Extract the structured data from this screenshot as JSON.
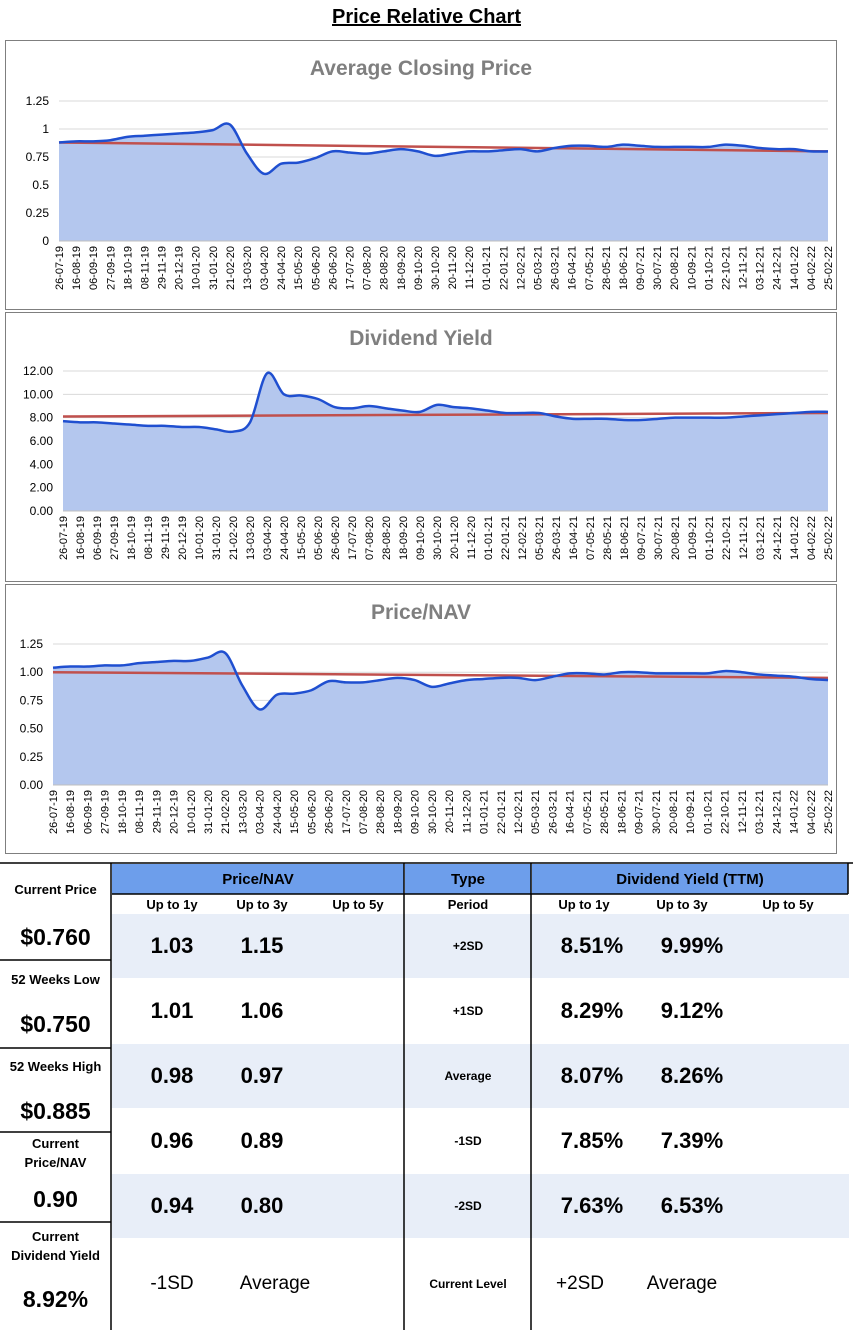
{
  "page_title": "Price Relative Chart",
  "chart_data": [
    {
      "type": "area",
      "title": "Average Closing Price",
      "ylim": [
        0,
        1.25
      ],
      "y_ticks": [
        0,
        0.25,
        0.5,
        0.75,
        1,
        1.25
      ],
      "y_tick_labels": [
        "0",
        "0.25",
        "0.5",
        "0.75",
        "1",
        "1.25"
      ],
      "x_tick_labels": [
        "26-07-19",
        "16-08-19",
        "06-09-19",
        "27-09-19",
        "18-10-19",
        "08-11-19",
        "29-11-19",
        "20-12-19",
        "10-01-20",
        "31-01-20",
        "21-02-20",
        "13-03-20",
        "03-04-20",
        "24-04-20",
        "15-05-20",
        "05-06-20",
        "26-06-20",
        "17-07-20",
        "07-08-20",
        "28-08-20",
        "18-09-20",
        "09-10-20",
        "30-10-20",
        "20-11-20",
        "11-12-20",
        "01-01-21",
        "22-01-21",
        "12-02-21",
        "05-03-21",
        "26-03-21",
        "16-04-21",
        "07-05-21",
        "28-05-21",
        "18-06-21",
        "09-07-21",
        "30-07-21",
        "20-08-21",
        "10-09-21",
        "01-10-21",
        "22-10-21",
        "12-11-21",
        "03-12-21",
        "24-12-21",
        "14-01-22",
        "04-02-22",
        "25-02-22"
      ],
      "values": [
        0.88,
        0.89,
        0.89,
        0.9,
        0.93,
        0.94,
        0.95,
        0.96,
        0.97,
        0.99,
        1.04,
        0.78,
        0.6,
        0.69,
        0.7,
        0.74,
        0.8,
        0.79,
        0.78,
        0.8,
        0.82,
        0.8,
        0.76,
        0.78,
        0.8,
        0.8,
        0.81,
        0.82,
        0.8,
        0.83,
        0.85,
        0.85,
        0.84,
        0.86,
        0.85,
        0.84,
        0.84,
        0.84,
        0.84,
        0.86,
        0.85,
        0.83,
        0.82,
        0.82,
        0.8,
        0.8
      ],
      "trend": [
        0.88,
        0.8
      ],
      "series_color": "#1f4fd0",
      "fill_color": "#b4c7ee",
      "trend_color": "#c0504d"
    },
    {
      "type": "area",
      "title": "Dividend Yield",
      "ylim": [
        0,
        12
      ],
      "y_ticks": [
        0,
        2,
        4,
        6,
        8,
        10,
        12
      ],
      "y_tick_labels": [
        "0.00",
        "2.00",
        "4.00",
        "6.00",
        "8.00",
        "10.00",
        "12.00"
      ],
      "x_tick_labels": [
        "26-07-19",
        "16-08-19",
        "06-09-19",
        "27-09-19",
        "18-10-19",
        "08-11-19",
        "29-11-19",
        "20-12-19",
        "10-01-20",
        "31-01-20",
        "21-02-20",
        "13-03-20",
        "03-04-20",
        "24-04-20",
        "15-05-20",
        "05-06-20",
        "26-06-20",
        "17-07-20",
        "07-08-20",
        "28-08-20",
        "18-09-20",
        "09-10-20",
        "30-10-20",
        "20-11-20",
        "11-12-20",
        "01-01-21",
        "22-01-21",
        "12-02-21",
        "05-03-21",
        "26-03-21",
        "16-04-21",
        "07-05-21",
        "28-05-21",
        "18-06-21",
        "09-07-21",
        "30-07-21",
        "20-08-21",
        "10-09-21",
        "01-10-21",
        "22-10-21",
        "12-11-21",
        "03-12-21",
        "24-12-21",
        "14-01-22",
        "04-02-22",
        "25-02-22"
      ],
      "values": [
        7.7,
        7.6,
        7.6,
        7.5,
        7.4,
        7.3,
        7.3,
        7.2,
        7.2,
        7.0,
        6.8,
        7.6,
        11.8,
        10.0,
        9.9,
        9.6,
        8.9,
        8.8,
        9.0,
        8.8,
        8.6,
        8.5,
        9.1,
        8.9,
        8.8,
        8.6,
        8.4,
        8.4,
        8.4,
        8.1,
        7.9,
        7.9,
        7.9,
        7.8,
        7.8,
        7.9,
        8.0,
        8.0,
        8.0,
        8.0,
        8.1,
        8.2,
        8.3,
        8.4,
        8.5,
        8.5
      ],
      "trend": [
        8.1,
        8.4
      ],
      "series_color": "#1f4fd0",
      "fill_color": "#b4c7ee",
      "trend_color": "#c0504d"
    },
    {
      "type": "area",
      "title": "Price/NAV",
      "ylim": [
        0,
        1.25
      ],
      "y_ticks": [
        0,
        0.25,
        0.5,
        0.75,
        1,
        1.25
      ],
      "y_tick_labels": [
        "0.00",
        "0.25",
        "0.50",
        "0.75",
        "1.00",
        "1.25"
      ],
      "x_tick_labels": [
        "26-07-19",
        "16-08-19",
        "06-09-19",
        "27-09-19",
        "18-10-19",
        "08-11-19",
        "29-11-19",
        "20-12-19",
        "10-01-20",
        "31-01-20",
        "21-02-20",
        "13-03-20",
        "03-04-20",
        "24-04-20",
        "15-05-20",
        "05-06-20",
        "26-06-20",
        "17-07-20",
        "07-08-20",
        "28-08-20",
        "18-09-20",
        "09-10-20",
        "30-10-20",
        "20-11-20",
        "11-12-20",
        "01-01-21",
        "22-01-21",
        "12-02-21",
        "05-03-21",
        "26-03-21",
        "16-04-21",
        "07-05-21",
        "28-05-21",
        "18-06-21",
        "09-07-21",
        "30-07-21",
        "20-08-21",
        "10-09-21",
        "01-10-21",
        "22-10-21",
        "12-11-21",
        "03-12-21",
        "24-12-21",
        "14-01-22",
        "04-02-22",
        "25-02-22"
      ],
      "values": [
        1.04,
        1.05,
        1.05,
        1.06,
        1.06,
        1.08,
        1.09,
        1.1,
        1.1,
        1.13,
        1.17,
        0.88,
        0.67,
        0.8,
        0.81,
        0.84,
        0.92,
        0.91,
        0.91,
        0.93,
        0.95,
        0.93,
        0.87,
        0.9,
        0.93,
        0.94,
        0.95,
        0.95,
        0.93,
        0.96,
        0.99,
        0.99,
        0.98,
        1.0,
        1.0,
        0.99,
        0.99,
        0.99,
        0.99,
        1.01,
        1.0,
        0.98,
        0.97,
        0.96,
        0.94,
        0.93
      ],
      "trend": [
        1.0,
        0.95
      ],
      "series_color": "#1f4fd0",
      "fill_color": "#b4c7ee",
      "trend_color": "#c0504d"
    }
  ],
  "left_panel": {
    "current_price_label": "Current Price",
    "current_price": "$0.760",
    "low_label": "52 Weeks Low",
    "low": "$0.750",
    "high_label": "52 Weeks High",
    "high": "$0.885",
    "pnav_label_1": "Current",
    "pnav_label_2": "Price/NAV",
    "pnav": "0.90",
    "dy_label_1": "Current",
    "dy_label_2": "Dividend Yield",
    "dy": "8.92%"
  },
  "table": {
    "pnav_header": "Price/NAV",
    "type_header": "Type",
    "dy_header": "Dividend Yield (TTM)",
    "sub_1y": "Up to 1y",
    "sub_3y": "Up to 3y",
    "sub_5y": "Up to 5y",
    "period": "Period",
    "rows": [
      {
        "type": "+2SD",
        "pnav_1y": "1.03",
        "pnav_3y": "1.15",
        "dy_1y": "8.51%",
        "dy_3y": "9.99%"
      },
      {
        "type": "+1SD",
        "pnav_1y": "1.01",
        "pnav_3y": "1.06",
        "dy_1y": "8.29%",
        "dy_3y": "9.12%"
      },
      {
        "type": "Average",
        "pnav_1y": "0.98",
        "pnav_3y": "0.97",
        "dy_1y": "8.07%",
        "dy_3y": "8.26%"
      },
      {
        "type": "-1SD",
        "pnav_1y": "0.96",
        "pnav_3y": "0.89",
        "dy_1y": "7.85%",
        "dy_3y": "7.39%"
      },
      {
        "type": "-2SD",
        "pnav_1y": "0.94",
        "pnav_3y": "0.80",
        "dy_1y": "7.63%",
        "dy_3y": "6.53%"
      }
    ],
    "current_level_label": "Current Level",
    "pnav_level_1y": "-1SD",
    "pnav_level_3y": "Average",
    "dy_level_1y": "+2SD",
    "dy_level_3y": "Average"
  }
}
